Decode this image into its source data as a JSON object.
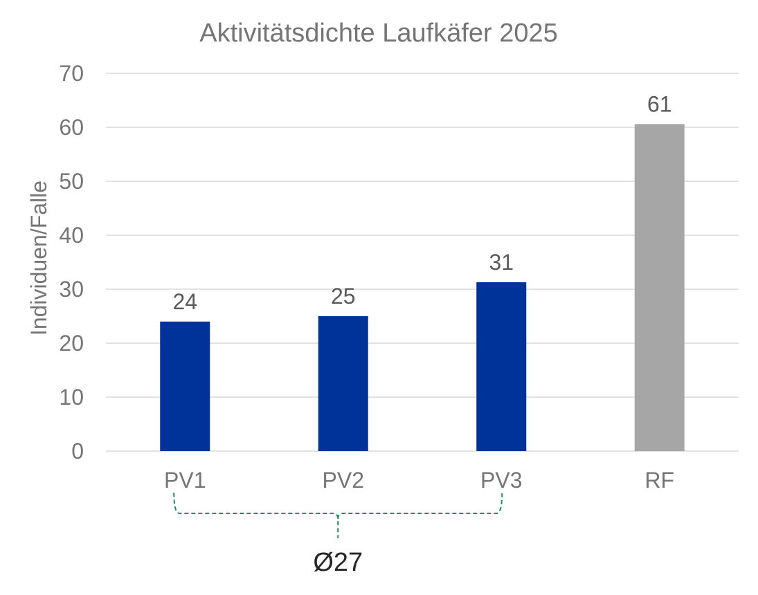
{
  "chart_data": {
    "type": "bar",
    "title": "Aktivitätsdichte Laufkäfer 2025",
    "xlabel": "",
    "ylabel": "Individuen/Falle",
    "ylim": [
      0,
      70
    ],
    "yticks": [
      0,
      10,
      20,
      30,
      40,
      50,
      60,
      70
    ],
    "grid": true,
    "categories": [
      "PV1",
      "PV2",
      "PV3",
      "RF"
    ],
    "values": [
      24,
      25,
      31.3,
      60.6
    ],
    "data_labels": [
      "24",
      "25",
      "31",
      "61"
    ],
    "colors": [
      "#003399",
      "#003399",
      "#003399",
      "#a6a6a6"
    ],
    "annotation": {
      "text": "Ø27",
      "spans": [
        "PV1",
        "PV2",
        "PV3"
      ],
      "color": "#1f8a5e"
    }
  }
}
